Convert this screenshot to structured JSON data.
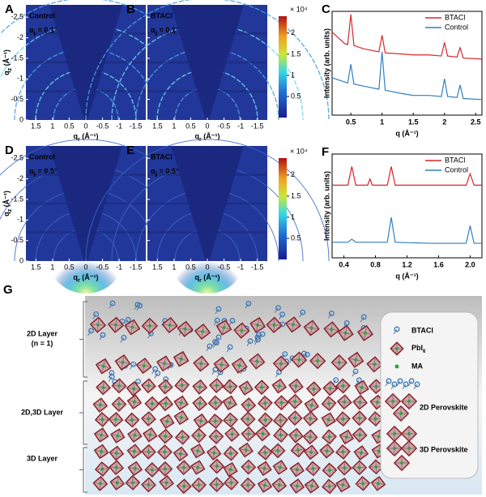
{
  "images": [
    {
      "letter": "A",
      "sample": "Control",
      "alpha": "α",
      "alpha_sub": "i",
      "alpha_eq": " = 0.1°",
      "glow": false
    },
    {
      "letter": "B",
      "sample": "BTACl",
      "alpha": "α",
      "alpha_sub": "i",
      "alpha_eq": " = 0.1°",
      "glow": false
    },
    {
      "letter": "D",
      "sample": "Control",
      "alpha": "α",
      "alpha_sub": "i",
      "alpha_eq": " = 0.5°",
      "glow": true
    },
    {
      "letter": "E",
      "sample": "BTACl",
      "alpha": "α",
      "alpha_sub": "i",
      "alpha_eq": " = 0.5°",
      "glow": true
    }
  ],
  "image_axes": {
    "ylabel": {
      "main": "q",
      "sub": "z",
      "unit": " (Å⁻¹)"
    },
    "xlabel": {
      "main": "q",
      "sub": "r",
      "unit": " (Å⁻¹)"
    },
    "xlim": [
      1.8,
      -1.8
    ],
    "xticks": [
      1.5,
      1,
      0.5,
      0,
      -0.5,
      -1,
      -1.5
    ],
    "ylim": [
      0,
      -2.8
    ],
    "yticks": [
      -2.5,
      -2,
      -1.5,
      -1,
      -0.5,
      0
    ]
  },
  "colorbars": [
    {
      "multiplier": "× 10⁴",
      "lim": [
        0,
        2.4
      ],
      "ticks": [
        0.5,
        1,
        1.5,
        2
      ]
    },
    {
      "multiplier": "× 10⁴",
      "lim": [
        0,
        2.4
      ],
      "ticks": [
        0.5,
        1,
        1.5,
        2
      ]
    }
  ],
  "chart_data": [
    {
      "type": "line",
      "label": "C",
      "xlabel": "q (Å⁻¹)",
      "ylabel": "Intensity (arb. units)",
      "x": [
        0.2,
        0.4,
        0.45,
        0.5,
        0.55,
        0.7,
        0.95,
        1.0,
        1.05,
        1.3,
        1.5,
        1.75,
        1.95,
        2.0,
        2.05,
        2.2,
        2.25,
        2.3,
        2.6
      ],
      "xlim": [
        0.2,
        2.6
      ],
      "xticks": [
        0.5,
        1,
        1.5,
        2,
        2.5
      ],
      "ylim": [
        0,
        10
      ],
      "legend": "upper right",
      "series": [
        {
          "name": "BTACl",
          "color": "#d9262b",
          "values": [
            8.0,
            6.9,
            6.8,
            9.7,
            6.7,
            6.4,
            6.1,
            7.7,
            6.0,
            5.9,
            5.8,
            5.8,
            5.7,
            7.0,
            5.7,
            5.6,
            6.5,
            5.5,
            5.4
          ]
        },
        {
          "name": "Control",
          "color": "#2f7fc1",
          "values": [
            3.6,
            3.2,
            3.1,
            4.9,
            3.0,
            2.8,
            2.5,
            6.1,
            2.4,
            2.1,
            1.9,
            1.9,
            1.8,
            3.5,
            1.8,
            1.7,
            2.9,
            1.6,
            1.5
          ]
        }
      ]
    },
    {
      "type": "line",
      "label": "F",
      "xlabel": "q (Å⁻¹)",
      "ylabel": "Intensity (arb. units)",
      "x": [
        0.25,
        0.45,
        0.5,
        0.55,
        0.7,
        0.73,
        0.76,
        0.95,
        1.0,
        1.05,
        1.5,
        1.95,
        2.0,
        2.05,
        2.15
      ],
      "xlim": [
        0.25,
        2.15
      ],
      "xticks": [
        0.4,
        0.8,
        1.2,
        1.6,
        {
          "value": 2,
          "label": "2.0"
        }
      ],
      "ylim": [
        0,
        10
      ],
      "legend": "upper right",
      "series": [
        {
          "name": "BTACl",
          "color": "#d9262b",
          "values": [
            7.0,
            7.0,
            8.8,
            7.0,
            7.0,
            7.6,
            7.0,
            7.0,
            8.8,
            7.0,
            7.0,
            7.0,
            8.1,
            7.0,
            7.0
          ]
        },
        {
          "name": "Control",
          "color": "#2f7fc1",
          "values": [
            1.5,
            1.5,
            1.8,
            1.5,
            1.5,
            1.5,
            1.5,
            1.5,
            3.9,
            1.5,
            1.4,
            1.4,
            3.1,
            1.4,
            1.4
          ]
        }
      ]
    }
  ],
  "schematic": {
    "letter": "G",
    "layers": [
      "2D Layer",
      "(n = 1)",
      "2D,3D Layer",
      "3D Layer"
    ],
    "legend": {
      "btacl": "BTACl",
      "pbi": "PbI",
      "pbi_sub": "6",
      "ma": "MA",
      "p2d": "2D Perovskite",
      "p3d": "3D Perovskite"
    }
  }
}
